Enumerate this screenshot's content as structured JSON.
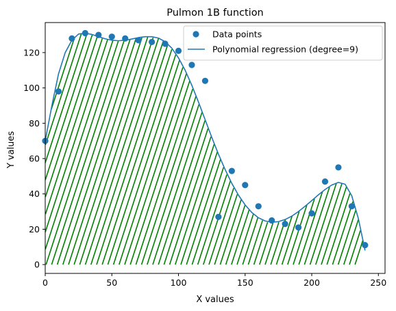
{
  "chart_data": {
    "type": "scatter",
    "title": "Pulmon 1B function",
    "xlabel": "X values",
    "ylabel": "Y values",
    "xlim": [
      0,
      255
    ],
    "ylim": [
      -5,
      137
    ],
    "xticks": [
      0,
      50,
      100,
      150,
      200,
      250
    ],
    "yticks": [
      0,
      20,
      40,
      60,
      80,
      100,
      120
    ],
    "grid": false,
    "legend_position": "top-right",
    "series": [
      {
        "name": "Data points",
        "kind": "scatter",
        "color": "#1f77b4",
        "x": [
          0,
          10,
          20,
          30,
          40,
          50,
          60,
          70,
          80,
          90,
          100,
          110,
          120,
          130,
          140,
          150,
          160,
          170,
          180,
          190,
          200,
          210,
          220,
          230,
          240
        ],
        "y": [
          70,
          98,
          128,
          131,
          130,
          129,
          128,
          127,
          126,
          125,
          121,
          113,
          104,
          27,
          53,
          45,
          33,
          25,
          23,
          21,
          29,
          47,
          55,
          33,
          11
        ]
      },
      {
        "name": "Polynomial regression (degree=9)",
        "kind": "line",
        "color": "#1f77b4",
        "x": [
          0,
          5,
          10,
          15,
          20,
          25,
          30,
          35,
          40,
          45,
          50,
          55,
          60,
          65,
          70,
          75,
          80,
          85,
          90,
          95,
          100,
          105,
          110,
          115,
          120,
          125,
          130,
          135,
          140,
          145,
          150,
          155,
          160,
          165,
          170,
          175,
          180,
          185,
          190,
          195,
          200,
          205,
          210,
          215,
          220,
          225,
          230,
          235,
          240
        ],
        "y": [
          70,
          90,
          108,
          120,
          127,
          130.5,
          131,
          130.3,
          129,
          127.8,
          127,
          126.7,
          127,
          127.7,
          128.5,
          129,
          129,
          128.2,
          126.2,
          122.5,
          117,
          110,
          101.5,
          92,
          82,
          72,
          62.5,
          53.8,
          46,
          39.3,
          33.8,
          29.5,
          26.5,
          24.7,
          24,
          24.3,
          25.5,
          27.4,
          30,
          33,
          36.2,
          39.5,
          42.5,
          45,
          46.5,
          45.5,
          39,
          26,
          8
        ]
      }
    ],
    "fill": {
      "color": "#008000",
      "style": "hatched",
      "x_range": [
        0,
        240
      ],
      "between": [
        "Polynomial regression (degree=9)",
        0
      ]
    }
  }
}
